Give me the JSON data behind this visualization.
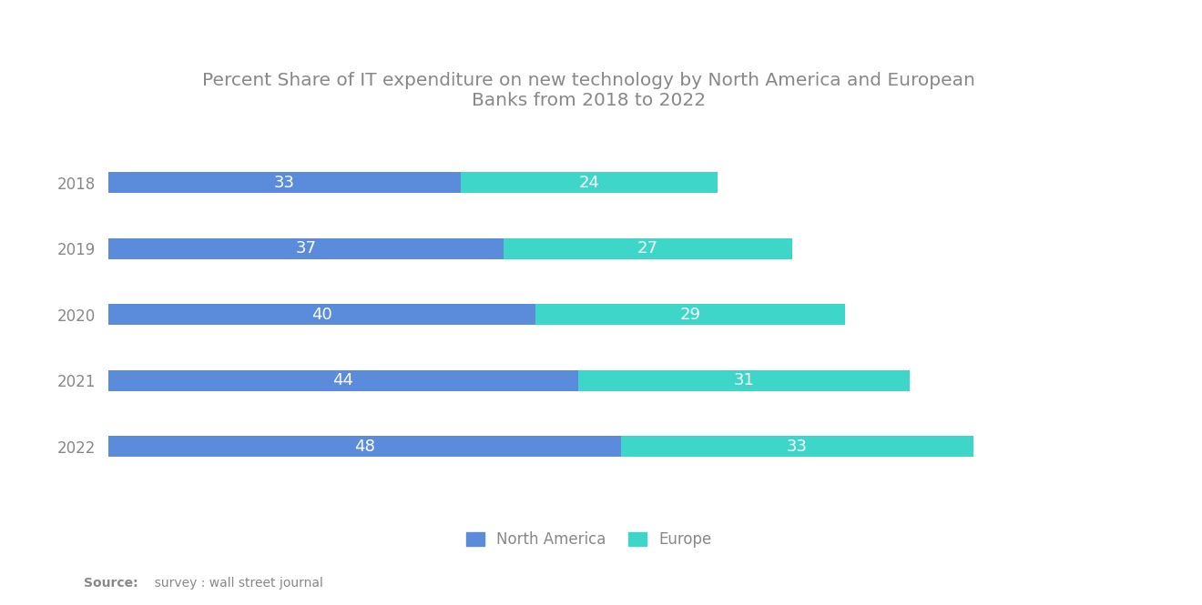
{
  "title": "Percent Share of IT expenditure on new technology by North America and European\nBanks from 2018 to 2022",
  "years": [
    "2018",
    "2019",
    "2020",
    "2021",
    "2022"
  ],
  "north_america": [
    33,
    37,
    40,
    44,
    48
  ],
  "europe": [
    24,
    27,
    29,
    31,
    33
  ],
  "color_north_america": "#5B8CDB",
  "color_europe": "#3DD6C8",
  "bar_height": 0.32,
  "title_fontsize": 14.5,
  "label_fontsize": 13,
  "tick_fontsize": 12,
  "source_bold": "Source:",
  "source_rest": "  survey : wall street journal",
  "legend_labels": [
    "North America",
    "Europe"
  ],
  "background_color": "#ffffff",
  "text_color": "#888888",
  "xlim": [
    0,
    90
  ]
}
